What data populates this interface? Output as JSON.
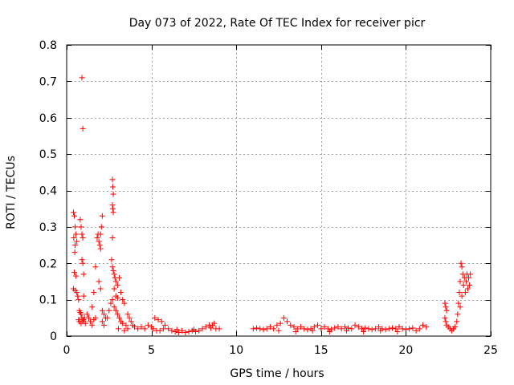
{
  "chart_data": {
    "type": "scatter",
    "title": "Day 073 of 2022, Rate Of TEC Index for receiver picr",
    "xlabel": "GPS time / hours",
    "ylabel": "ROTI / TECUs",
    "xlim": [
      0,
      25
    ],
    "ylim": [
      0,
      0.8
    ],
    "x_ticks": [
      0,
      5,
      10,
      15,
      20,
      25
    ],
    "y_ticks": [
      0,
      0.1,
      0.2,
      0.3,
      0.4,
      0.5,
      0.6,
      0.7,
      0.8
    ],
    "x_tick_labels": [
      "0",
      "5",
      "10",
      "15",
      "20",
      "25"
    ],
    "y_tick_labels": [
      "0",
      "0.1",
      "0.2",
      "0.3",
      "0.4",
      "0.5",
      "0.6",
      "0.7",
      "0.8"
    ],
    "grid": true,
    "marker": "+",
    "color": "#ff0000",
    "series": [
      {
        "name": "ROTI",
        "points": [
          [
            0.4,
            0.34
          ],
          [
            0.45,
            0.33
          ],
          [
            0.5,
            0.3
          ],
          [
            0.42,
            0.27
          ],
          [
            0.5,
            0.25
          ],
          [
            0.55,
            0.28
          ],
          [
            0.6,
            0.26
          ],
          [
            0.48,
            0.23
          ],
          [
            0.45,
            0.175
          ],
          [
            0.55,
            0.165
          ],
          [
            0.4,
            0.13
          ],
          [
            0.5,
            0.125
          ],
          [
            0.6,
            0.12
          ],
          [
            0.65,
            0.11
          ],
          [
            0.7,
            0.1
          ],
          [
            0.75,
            0.07
          ],
          [
            0.8,
            0.065
          ],
          [
            0.85,
            0.06
          ],
          [
            0.9,
            0.05
          ],
          [
            0.7,
            0.045
          ],
          [
            0.75,
            0.04
          ],
          [
            0.85,
            0.035
          ],
          [
            0.95,
            0.04
          ],
          [
            1.0,
            0.045
          ],
          [
            1.05,
            0.05
          ],
          [
            1.1,
            0.035
          ],
          [
            0.8,
            0.32
          ],
          [
            0.85,
            0.3
          ],
          [
            0.9,
            0.28
          ],
          [
            0.95,
            0.27
          ],
          [
            0.9,
            0.71
          ],
          [
            0.95,
            0.57
          ],
          [
            0.9,
            0.21
          ],
          [
            0.95,
            0.2
          ],
          [
            1.0,
            0.17
          ],
          [
            1.0,
            0.11
          ],
          [
            1.2,
            0.06
          ],
          [
            1.3,
            0.05
          ],
          [
            1.4,
            0.04
          ],
          [
            1.5,
            0.03
          ],
          [
            1.6,
            0.045
          ],
          [
            1.7,
            0.05
          ],
          [
            1.5,
            0.08
          ],
          [
            1.6,
            0.12
          ],
          [
            1.7,
            0.19
          ],
          [
            1.8,
            0.27
          ],
          [
            1.85,
            0.28
          ],
          [
            1.9,
            0.26
          ],
          [
            1.95,
            0.25
          ],
          [
            2.0,
            0.28
          ],
          [
            2.05,
            0.3
          ],
          [
            2.1,
            0.33
          ],
          [
            2.0,
            0.24
          ],
          [
            1.9,
            0.15
          ],
          [
            2.0,
            0.13
          ],
          [
            2.1,
            0.07
          ],
          [
            2.2,
            0.06
          ],
          [
            2.3,
            0.05
          ],
          [
            2.1,
            0.04
          ],
          [
            2.2,
            0.03
          ],
          [
            2.4,
            0.05
          ],
          [
            2.5,
            0.07
          ],
          [
            2.6,
            0.09
          ],
          [
            2.7,
            0.1
          ],
          [
            2.7,
            0.43
          ],
          [
            2.72,
            0.41
          ],
          [
            2.75,
            0.39
          ],
          [
            2.7,
            0.36
          ],
          [
            2.72,
            0.35
          ],
          [
            2.75,
            0.34
          ],
          [
            2.7,
            0.27
          ],
          [
            2.65,
            0.21
          ],
          [
            2.7,
            0.19
          ],
          [
            2.75,
            0.18
          ],
          [
            2.8,
            0.17
          ],
          [
            2.85,
            0.16
          ],
          [
            2.9,
            0.15
          ],
          [
            3.0,
            0.14
          ],
          [
            3.1,
            0.16
          ],
          [
            3.2,
            0.12
          ],
          [
            3.3,
            0.1
          ],
          [
            3.4,
            0.09
          ],
          [
            2.8,
            0.08
          ],
          [
            2.9,
            0.07
          ],
          [
            3.0,
            0.06
          ],
          [
            3.1,
            0.05
          ],
          [
            3.2,
            0.04
          ],
          [
            3.3,
            0.035
          ],
          [
            3.5,
            0.03
          ],
          [
            3.6,
            0.06
          ],
          [
            3.7,
            0.05
          ],
          [
            3.8,
            0.04
          ],
          [
            3.9,
            0.03
          ],
          [
            4.0,
            0.025
          ],
          [
            2.9,
            0.11
          ],
          [
            3.0,
            0.105
          ],
          [
            2.8,
            0.13
          ],
          [
            3.05,
            0.02
          ],
          [
            3.4,
            0.015
          ],
          [
            3.6,
            0.02
          ],
          [
            4.2,
            0.02
          ],
          [
            4.4,
            0.025
          ],
          [
            4.6,
            0.02
          ],
          [
            4.8,
            0.03
          ],
          [
            5.0,
            0.025
          ],
          [
            5.2,
            0.05
          ],
          [
            5.4,
            0.045
          ],
          [
            5.6,
            0.04
          ],
          [
            5.8,
            0.03
          ],
          [
            6.0,
            0.02
          ],
          [
            5.1,
            0.02
          ],
          [
            5.3,
            0.015
          ],
          [
            5.5,
            0.015
          ],
          [
            5.7,
            0.02
          ],
          [
            6.2,
            0.015
          ],
          [
            6.4,
            0.012
          ],
          [
            6.6,
            0.01
          ],
          [
            6.8,
            0.015
          ],
          [
            7.0,
            0.01
          ],
          [
            7.2,
            0.012
          ],
          [
            7.4,
            0.015
          ],
          [
            7.6,
            0.012
          ],
          [
            7.8,
            0.015
          ],
          [
            8.0,
            0.02
          ],
          [
            8.2,
            0.025
          ],
          [
            8.4,
            0.03
          ],
          [
            8.6,
            0.03
          ],
          [
            8.7,
            0.035
          ],
          [
            8.8,
            0.02
          ],
          [
            9.0,
            0.02
          ],
          [
            6.5,
            0.018
          ],
          [
            7.5,
            0.018
          ],
          [
            8.5,
            0.022
          ],
          [
            11.0,
            0.02
          ],
          [
            11.2,
            0.022
          ],
          [
            11.4,
            0.02
          ],
          [
            11.6,
            0.018
          ],
          [
            11.8,
            0.02
          ],
          [
            12.0,
            0.025
          ],
          [
            12.2,
            0.02
          ],
          [
            12.4,
            0.03
          ],
          [
            12.6,
            0.035
          ],
          [
            12.8,
            0.05
          ],
          [
            13.0,
            0.04
          ],
          [
            13.2,
            0.03
          ],
          [
            13.4,
            0.025
          ],
          [
            13.6,
            0.02
          ],
          [
            13.8,
            0.025
          ],
          [
            14.0,
            0.02
          ],
          [
            14.2,
            0.018
          ],
          [
            14.4,
            0.02
          ],
          [
            14.6,
            0.025
          ],
          [
            14.8,
            0.03
          ],
          [
            15.0,
            0.02
          ],
          [
            15.2,
            0.025
          ],
          [
            15.4,
            0.02
          ],
          [
            15.6,
            0.018
          ],
          [
            15.8,
            0.022
          ],
          [
            16.0,
            0.025
          ],
          [
            16.2,
            0.02
          ],
          [
            16.4,
            0.025
          ],
          [
            16.6,
            0.022
          ],
          [
            16.8,
            0.02
          ],
          [
            17.0,
            0.03
          ],
          [
            17.2,
            0.025
          ],
          [
            17.4,
            0.02
          ],
          [
            17.6,
            0.022
          ],
          [
            17.8,
            0.02
          ],
          [
            18.0,
            0.018
          ],
          [
            18.2,
            0.02
          ],
          [
            18.4,
            0.025
          ],
          [
            18.6,
            0.02
          ],
          [
            18.8,
            0.018
          ],
          [
            19.0,
            0.02
          ],
          [
            19.2,
            0.022
          ],
          [
            19.4,
            0.02
          ],
          [
            19.6,
            0.025
          ],
          [
            19.8,
            0.02
          ],
          [
            20.0,
            0.018
          ],
          [
            20.2,
            0.02
          ],
          [
            20.4,
            0.022
          ],
          [
            20.6,
            0.015
          ],
          [
            20.8,
            0.02
          ],
          [
            21.0,
            0.03
          ],
          [
            21.2,
            0.025
          ],
          [
            12.5,
            0.015
          ],
          [
            13.5,
            0.012
          ],
          [
            14.5,
            0.015
          ],
          [
            15.5,
            0.012
          ],
          [
            16.5,
            0.015
          ],
          [
            17.5,
            0.012
          ],
          [
            18.5,
            0.015
          ],
          [
            19.5,
            0.012
          ],
          [
            22.3,
            0.09
          ],
          [
            22.35,
            0.08
          ],
          [
            22.4,
            0.07
          ],
          [
            22.3,
            0.05
          ],
          [
            22.35,
            0.04
          ],
          [
            22.4,
            0.03
          ],
          [
            22.5,
            0.025
          ],
          [
            22.6,
            0.02
          ],
          [
            22.7,
            0.015
          ],
          [
            22.8,
            0.02
          ],
          [
            22.9,
            0.025
          ],
          [
            23.0,
            0.04
          ],
          [
            23.05,
            0.06
          ],
          [
            23.1,
            0.09
          ],
          [
            23.15,
            0.12
          ],
          [
            23.2,
            0.15
          ],
          [
            23.25,
            0.2
          ],
          [
            23.3,
            0.19
          ],
          [
            23.35,
            0.17
          ],
          [
            23.4,
            0.14
          ],
          [
            23.45,
            0.16
          ],
          [
            23.5,
            0.12
          ],
          [
            23.55,
            0.15
          ],
          [
            23.6,
            0.17
          ],
          [
            23.65,
            0.13
          ],
          [
            23.7,
            0.16
          ],
          [
            23.75,
            0.14
          ],
          [
            23.8,
            0.17
          ],
          [
            23.2,
            0.08
          ],
          [
            23.3,
            0.11
          ]
        ]
      }
    ]
  }
}
